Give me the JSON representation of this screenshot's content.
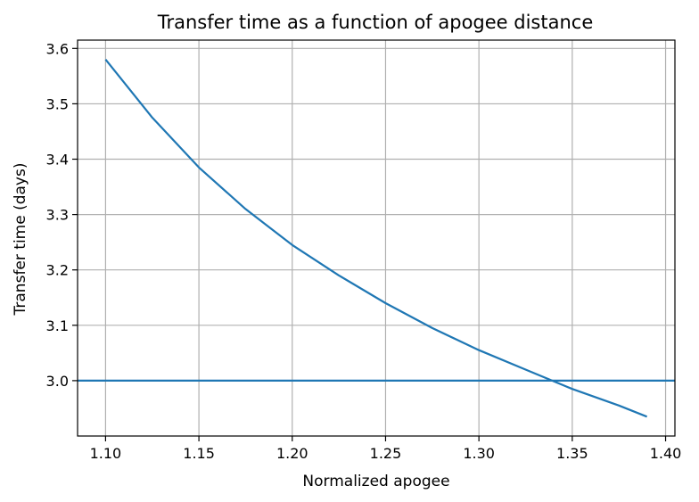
{
  "chart_data": {
    "type": "line",
    "title": "Transfer time as a function of apogee distance",
    "xlabel": "Normalized apogee",
    "ylabel": "Transfer time (days)",
    "xlim": [
      1.085,
      1.405
    ],
    "ylim": [
      2.9,
      3.615
    ],
    "xticks": [
      1.1,
      1.15,
      1.2,
      1.25,
      1.3,
      1.35,
      1.4
    ],
    "xtick_labels": [
      "1.10",
      "1.15",
      "1.20",
      "1.25",
      "1.30",
      "1.35",
      "1.40"
    ],
    "yticks": [
      3.0,
      3.1,
      3.2,
      3.3,
      3.4,
      3.5,
      3.6
    ],
    "ytick_labels": [
      "3.0",
      "3.1",
      "3.2",
      "3.3",
      "3.4",
      "3.5",
      "3.6"
    ],
    "grid": true,
    "line_color": "#1f77b4",
    "series": [
      {
        "x": [
          1.1,
          1.125,
          1.15,
          1.175,
          1.2,
          1.225,
          1.25,
          1.275,
          1.3,
          1.325,
          1.35,
          1.375,
          1.39
        ],
        "y": [
          3.58,
          3.475,
          3.385,
          3.31,
          3.245,
          3.19,
          3.14,
          3.095,
          3.055,
          3.02,
          2.985,
          2.955,
          2.935
        ]
      }
    ],
    "hlines": [
      {
        "y": 3.0
      }
    ]
  }
}
